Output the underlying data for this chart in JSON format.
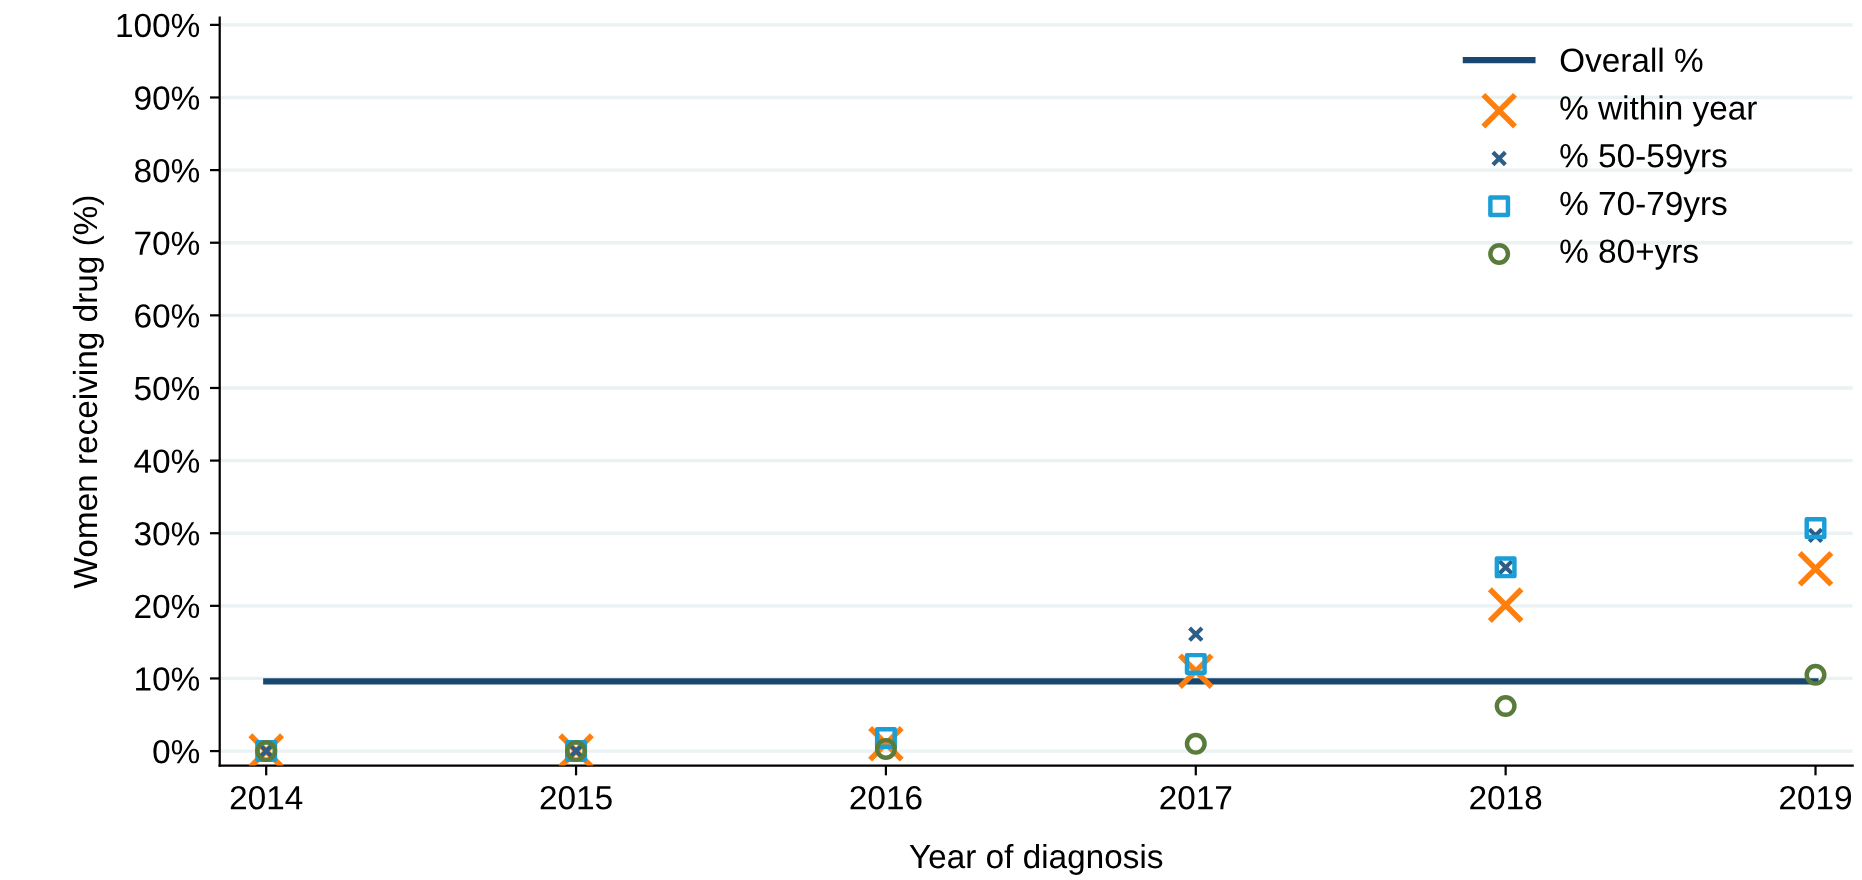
{
  "chart_data": {
    "type": "scatter",
    "xlabel": "Year of diagnosis",
    "ylabel": "Women receiving drug (%)",
    "x": [
      2014,
      2015,
      2016,
      2017,
      2018,
      2019
    ],
    "series": [
      {
        "name": "Overall %",
        "type": "line",
        "x": [
          2014,
          2019
        ],
        "color": "#1a476f",
        "marker": "none",
        "line_style": "solid",
        "values": [
          9.6,
          9.6
        ]
      },
      {
        "name": "% within year",
        "color": "#ff7f0e",
        "marker": "cross",
        "values": [
          0,
          0,
          1.0,
          11,
          20.1,
          25.1
        ]
      },
      {
        "name": "% 50-59yrs",
        "color": "#2d5e88",
        "marker": "cross",
        "values": [
          0,
          0,
          null,
          16.1,
          25.3,
          29.7
        ]
      },
      {
        "name": "% 70-79yrs",
        "color": "#1a9ed5",
        "marker": "square",
        "values": [
          0,
          0,
          1.8,
          12,
          25.3,
          30.7
        ]
      },
      {
        "name": "% 80+yrs",
        "color": "#5a7c3a",
        "marker": "circle",
        "values": [
          0,
          0,
          0.3,
          1,
          6.2,
          10.5
        ]
      }
    ],
    "xlim": [
      2013.85,
      2019.12
    ],
    "xticks": [
      2014,
      2015,
      2016,
      2017,
      2018,
      2019
    ],
    "ylim": [
      -2,
      101
    ],
    "yticks": [
      {
        "value": 0,
        "label": "0%"
      },
      {
        "value": 10,
        "label": "10%"
      },
      {
        "value": 20,
        "label": "20%"
      },
      {
        "value": 30,
        "label": "30%"
      },
      {
        "value": 40,
        "label": "40%"
      },
      {
        "value": 50,
        "label": "50%"
      },
      {
        "value": 60,
        "label": "60%"
      },
      {
        "value": 70,
        "label": "70%"
      },
      {
        "value": 80,
        "label": "80%"
      },
      {
        "value": 90,
        "label": "90%"
      },
      {
        "value": 100,
        "label": "100%"
      }
    ],
    "grid": "y",
    "legend": "top right"
  }
}
